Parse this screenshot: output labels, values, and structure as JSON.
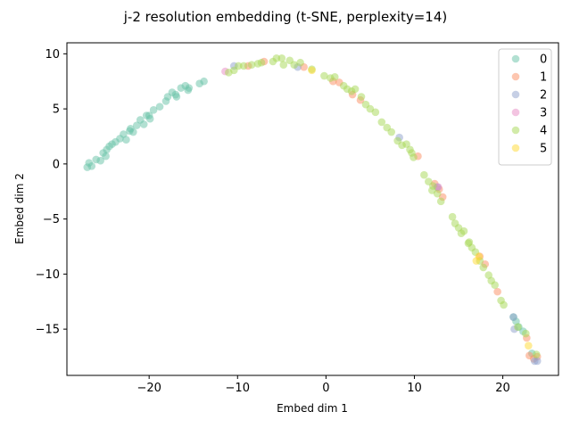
{
  "colors": {
    "series": [
      "#66c2a5",
      "#fc8d62",
      "#8da0cb",
      "#e78ac3",
      "#a6d854",
      "#ffd92f"
    ],
    "axes": "#000000",
    "background": "#ffffff"
  },
  "chart_data": {
    "type": "scatter",
    "title": "j-2 resolution embedding (t-SNE, perplexity=14)",
    "xlabel": "Embed dim 1",
    "ylabel": "Embed dim 2",
    "xlim": [
      -29.3,
      26.3
    ],
    "ylim": [
      -19.2,
      11.0
    ],
    "xticks": [
      -20,
      -10,
      0,
      10,
      20
    ],
    "yticks": [
      -15,
      -10,
      -5,
      0,
      5,
      10
    ],
    "xtick_labels": [
      "−20",
      "−10",
      "0",
      "10",
      "20"
    ],
    "ytick_labels": [
      "−15",
      "−10",
      "−5",
      "0",
      "5",
      "10"
    ],
    "grid": false,
    "legend_position": "top-right",
    "marker_alpha": 0.5,
    "series": [
      {
        "name": "0",
        "points": [
          [
            -27.0,
            -0.3
          ],
          [
            -26.8,
            0.1
          ],
          [
            -26.5,
            -0.2
          ],
          [
            -26.0,
            0.4
          ],
          [
            -25.5,
            0.3
          ],
          [
            -25.2,
            1.0
          ],
          [
            -24.9,
            0.7
          ],
          [
            -24.8,
            1.3
          ],
          [
            -24.2,
            1.8
          ],
          [
            -23.8,
            2.0
          ],
          [
            -23.3,
            2.3
          ],
          [
            -22.9,
            2.7
          ],
          [
            -22.6,
            2.2
          ],
          [
            -22.1,
            3.2
          ],
          [
            -21.8,
            2.9
          ],
          [
            -21.4,
            3.5
          ],
          [
            -21.0,
            4.0
          ],
          [
            -20.6,
            3.6
          ],
          [
            -20.3,
            4.4
          ],
          [
            -19.9,
            4.1
          ],
          [
            -19.5,
            4.9
          ],
          [
            -18.8,
            5.2
          ],
          [
            -18.1,
            5.7
          ],
          [
            -17.9,
            6.1
          ],
          [
            -17.4,
            6.5
          ],
          [
            -16.9,
            6.1
          ],
          [
            -16.4,
            6.9
          ],
          [
            -15.9,
            7.1
          ],
          [
            -15.6,
            6.7
          ],
          [
            -14.3,
            7.3
          ],
          [
            -13.8,
            7.5
          ],
          [
            -22.2,
            3.0
          ],
          [
            -24.5,
            1.6
          ],
          [
            -17.0,
            6.3
          ],
          [
            -15.5,
            6.9
          ],
          [
            -20.0,
            4.4
          ],
          [
            21.2,
            -13.9
          ],
          [
            21.5,
            -14.3
          ],
          [
            21.8,
            -14.8
          ],
          [
            22.3,
            -15.2
          ],
          [
            23.3,
            -17.2
          ]
        ]
      },
      {
        "name": "1",
        "points": [
          [
            -8.8,
            8.9
          ],
          [
            -7.0,
            9.3
          ],
          [
            -2.5,
            8.8
          ],
          [
            0.8,
            7.5
          ],
          [
            1.5,
            7.4
          ],
          [
            3.0,
            6.3
          ],
          [
            3.9,
            5.8
          ],
          [
            10.4,
            0.7
          ],
          [
            12.3,
            -1.8
          ],
          [
            12.8,
            -2.3
          ],
          [
            13.2,
            -3.0
          ],
          [
            17.4,
            -8.4
          ],
          [
            18.0,
            -9.1
          ],
          [
            19.4,
            -11.6
          ],
          [
            22.7,
            -15.8
          ],
          [
            23.0,
            -17.4
          ],
          [
            23.5,
            -17.7
          ],
          [
            23.9,
            -17.5
          ]
        ]
      },
      {
        "name": "2",
        "points": [
          [
            -10.4,
            8.9
          ],
          [
            -3.2,
            8.8
          ],
          [
            8.3,
            2.4
          ],
          [
            12.6,
            -2.1
          ],
          [
            21.2,
            -13.9
          ],
          [
            21.3,
            -15.0
          ],
          [
            23.6,
            -17.9
          ],
          [
            23.9,
            -17.9
          ]
        ]
      },
      {
        "name": "3",
        "points": [
          [
            -11.4,
            8.4
          ],
          [
            12.7,
            -2.1
          ]
        ]
      },
      {
        "name": "4",
        "points": [
          [
            -11.0,
            8.3
          ],
          [
            -10.4,
            8.5
          ],
          [
            -9.9,
            8.9
          ],
          [
            -9.3,
            8.9
          ],
          [
            -8.4,
            9.0
          ],
          [
            -7.7,
            9.1
          ],
          [
            -7.3,
            9.2
          ],
          [
            -6.0,
            9.3
          ],
          [
            -5.6,
            9.6
          ],
          [
            -5.0,
            9.6
          ],
          [
            -4.8,
            9.0
          ],
          [
            -4.1,
            9.4
          ],
          [
            -3.6,
            9.0
          ],
          [
            -2.9,
            9.2
          ],
          [
            -1.6,
            8.6
          ],
          [
            -0.2,
            8.0
          ],
          [
            0.5,
            7.8
          ],
          [
            1.0,
            7.9
          ],
          [
            2.0,
            7.1
          ],
          [
            2.4,
            6.8
          ],
          [
            2.9,
            6.6
          ],
          [
            3.3,
            6.8
          ],
          [
            4.0,
            6.1
          ],
          [
            4.5,
            5.4
          ],
          [
            5.0,
            5.0
          ],
          [
            5.6,
            4.7
          ],
          [
            6.3,
            3.8
          ],
          [
            6.9,
            3.3
          ],
          [
            7.4,
            2.9
          ],
          [
            8.1,
            2.1
          ],
          [
            8.6,
            1.7
          ],
          [
            9.1,
            1.8
          ],
          [
            9.5,
            1.3
          ],
          [
            9.9,
            0.6
          ],
          [
            11.1,
            -1.0
          ],
          [
            11.6,
            -1.6
          ],
          [
            12.1,
            -2.0
          ],
          [
            12.0,
            -2.4
          ],
          [
            12.6,
            -2.7
          ],
          [
            13.0,
            -3.4
          ],
          [
            14.3,
            -4.8
          ],
          [
            14.6,
            -5.4
          ],
          [
            15.0,
            -5.8
          ],
          [
            15.3,
            -6.3
          ],
          [
            15.6,
            -6.1
          ],
          [
            16.2,
            -7.1
          ],
          [
            16.5,
            -7.6
          ],
          [
            16.9,
            -8.0
          ],
          [
            17.4,
            -8.8
          ],
          [
            17.8,
            -9.4
          ],
          [
            18.4,
            -10.1
          ],
          [
            18.7,
            -10.6
          ],
          [
            19.1,
            -11.0
          ],
          [
            19.8,
            -12.4
          ],
          [
            20.1,
            -12.8
          ],
          [
            21.7,
            -14.8
          ],
          [
            22.6,
            -15.4
          ],
          [
            23.8,
            -17.3
          ],
          [
            16.1,
            -7.2
          ],
          [
            9.7,
            1.0
          ]
        ]
      },
      {
        "name": "5",
        "points": [
          [
            -1.6,
            8.5
          ],
          [
            17.0,
            -8.8
          ],
          [
            17.3,
            -8.4
          ],
          [
            22.9,
            -16.5
          ]
        ]
      }
    ]
  }
}
